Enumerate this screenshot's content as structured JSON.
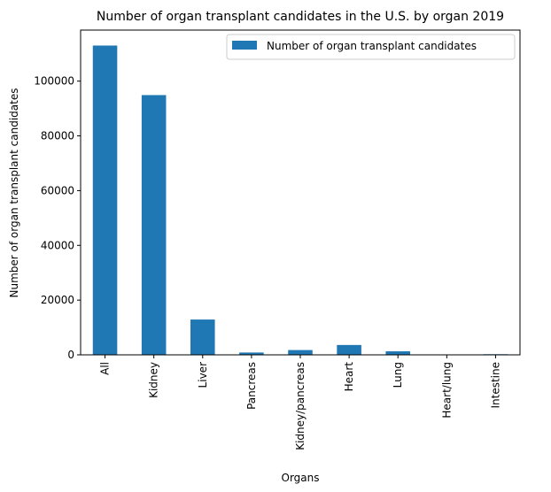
{
  "chart_data": {
    "type": "bar",
    "title": "Number of organ transplant candidates in the U.S. by organ 2019",
    "xlabel": "Organs",
    "ylabel": "Number of organ transplant candidates",
    "categories": [
      "All",
      "Kidney",
      "Liver",
      "Pancreas",
      "Kidney/pancreas",
      "Heart",
      "Lung",
      "Heart/lung",
      "Intestine"
    ],
    "series": [
      {
        "name": "Number of organ transplant candidates",
        "values": [
          113000,
          94900,
          12900,
          850,
          1750,
          3600,
          1300,
          40,
          230
        ],
        "color": "#1f77b4"
      }
    ],
    "ylim": [
      0,
      118650
    ],
    "yticks": [
      0,
      20000,
      40000,
      60000,
      80000,
      100000
    ],
    "legend_position": "top-right",
    "grid": false
  }
}
